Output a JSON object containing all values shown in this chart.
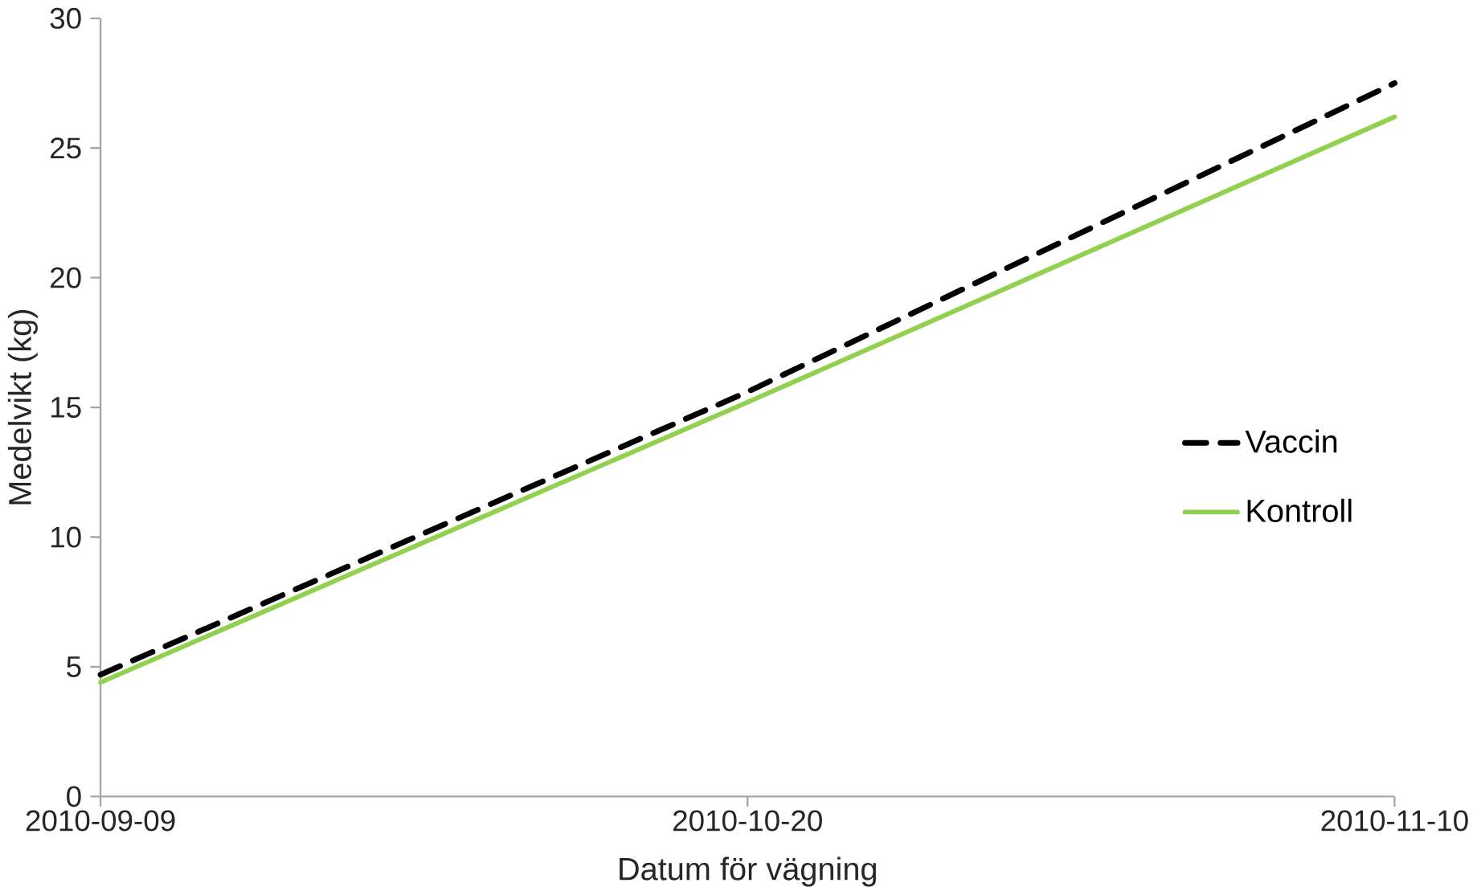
{
  "chart_data": {
    "type": "line",
    "xlabel": "Datum för vägning",
    "ylabel": "Medelvikt (kg)",
    "categories": [
      "2010-09-09",
      "2010-10-20",
      "2010-11-10"
    ],
    "series": [
      {
        "name": "Vaccin",
        "color": "#000000",
        "line_style": "dashed",
        "values": [
          4.7,
          15.6,
          27.5
        ]
      },
      {
        "name": "Kontroll",
        "color": "#92d050",
        "line_style": "solid",
        "values": [
          4.4,
          15.2,
          26.2
        ]
      }
    ],
    "ylim": [
      0,
      30
    ],
    "yticks": [
      0,
      5,
      10,
      15,
      20,
      25,
      30
    ],
    "grid": false,
    "legend": "right",
    "marker": "none"
  }
}
